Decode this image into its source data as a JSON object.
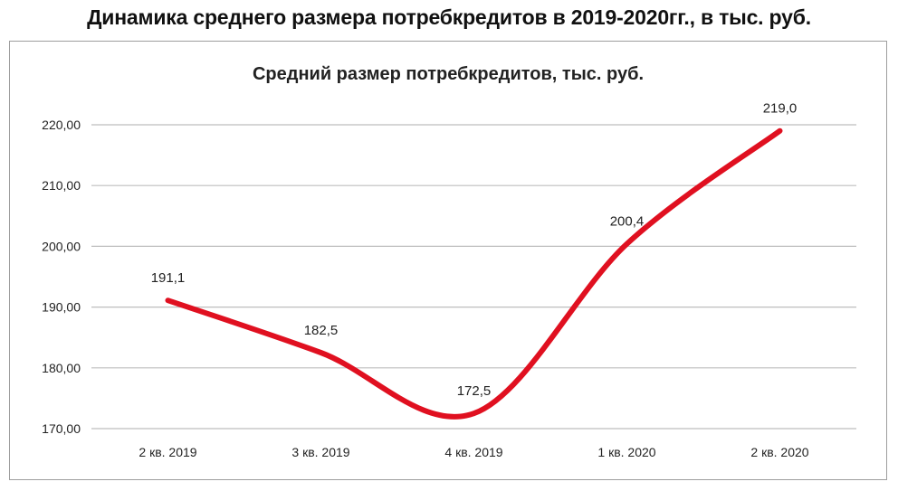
{
  "page": {
    "heading": "Динамика среднего размера потребкредитов в 2019-2020гг., в тыс. руб."
  },
  "colors": {
    "line": "#e01020",
    "grid": "#bdbdbd",
    "frame": "#9e9e9e"
  },
  "chart_data": {
    "type": "line",
    "title": "Средний размер потребкредитов,  тыс. руб.",
    "xlabel": "",
    "ylabel": "",
    "categories": [
      "2 кв. 2019",
      "3 кв. 2019",
      "4 кв. 2019",
      "1 кв. 2020",
      "2 кв. 2020"
    ],
    "series": [
      {
        "values": [
          191.1,
          182.5,
          172.5,
          200.4,
          219.0
        ]
      }
    ],
    "data_labels": [
      "191,1",
      "182,5",
      "172,5",
      "200,4",
      "219,0"
    ],
    "ylim": [
      170,
      220
    ],
    "yticks": [
      220,
      210,
      200,
      190,
      180,
      170
    ],
    "ytick_labels": [
      "220,00",
      "210,00",
      "200,00",
      "190,00",
      "180,00",
      "170,00"
    ],
    "grid": true,
    "smooth": true,
    "legend": "none"
  }
}
